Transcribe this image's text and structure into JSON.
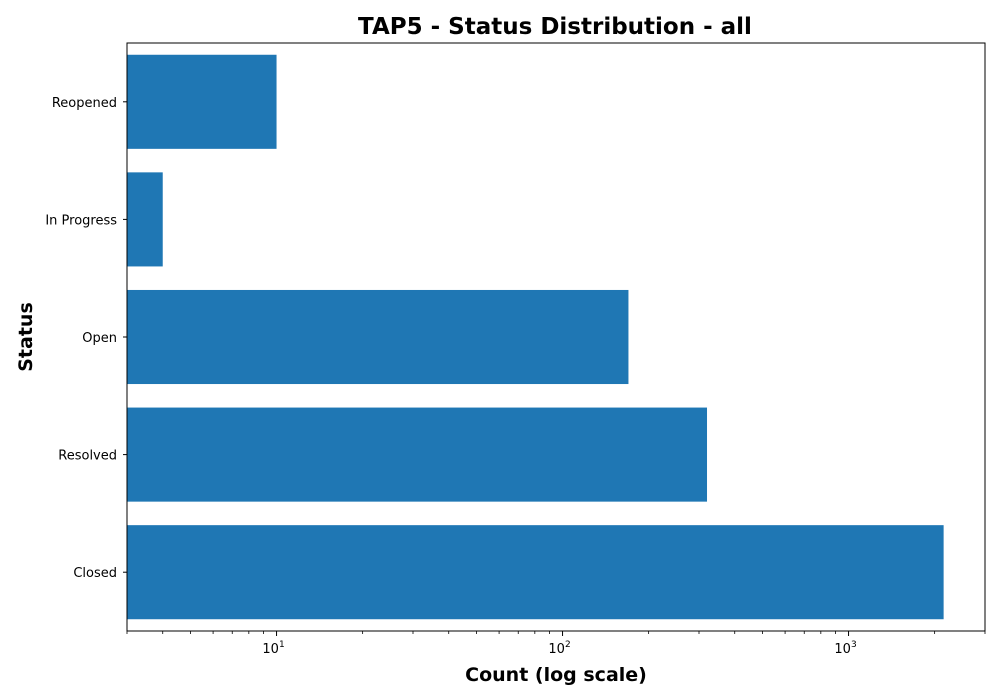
{
  "chart_data": {
    "type": "bar",
    "orientation": "horizontal",
    "title": "TAP5 - Status Distribution - all",
    "xlabel": "Count (log scale)",
    "ylabel": "Status",
    "x_scale": "log",
    "xlim": [
      3,
      3000
    ],
    "categories": [
      "Closed",
      "Resolved",
      "Open",
      "In Progress",
      "Reopened"
    ],
    "values": [
      2150,
      320,
      170,
      4,
      10
    ],
    "x_ticks": [
      {
        "value": 10,
        "base": "10",
        "exp": "1"
      },
      {
        "value": 100,
        "base": "10",
        "exp": "2"
      },
      {
        "value": 1000,
        "base": "10",
        "exp": "3"
      }
    ],
    "bar_color": "#1f77b4",
    "grid": false,
    "legend": "none"
  }
}
